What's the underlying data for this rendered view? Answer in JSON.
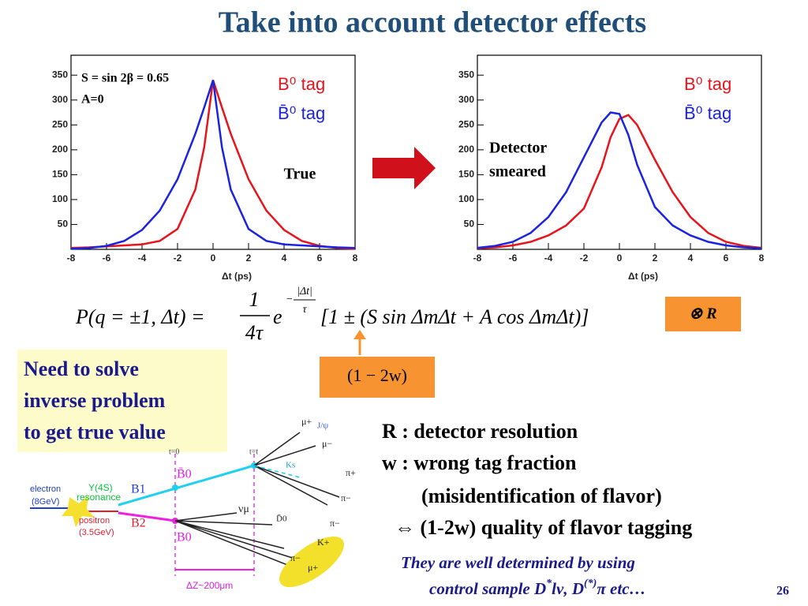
{
  "title": "Take into account detector effects",
  "chart_data": [
    {
      "type": "line",
      "xlabel": "Δt (ps)",
      "x": [
        -8,
        -7,
        -6,
        -5,
        -4,
        -3,
        -2,
        -1,
        -0.5,
        0,
        0.5,
        1,
        2,
        3,
        4,
        5,
        6,
        7,
        8
      ],
      "series": [
        {
          "name": "B⁰ tag",
          "color": "#e8141c",
          "values": [
            2.7,
            4,
            6,
            8,
            10,
            17,
            41,
            120,
            205,
            340,
            285,
            232,
            141,
            78,
            39,
            17,
            7,
            2.5,
            0.9
          ]
        },
        {
          "name": "B̄⁰ tag",
          "color": "#1a23e0",
          "values": [
            0.9,
            2.5,
            7,
            17,
            39,
            78,
            141,
            232,
            285,
            340,
            205,
            120,
            41,
            17,
            10,
            8,
            6,
            4,
            2.7
          ]
        }
      ],
      "xlim": [
        -8,
        8
      ],
      "ylim": [
        0,
        390
      ],
      "xticks": [
        -8,
        -6,
        -4,
        -2,
        0,
        2,
        4,
        6,
        8
      ],
      "yticks": [
        50,
        100,
        150,
        200,
        250,
        300,
        350
      ],
      "annotations": [
        "S = sin 2β = 0.65",
        "A=0",
        "True"
      ]
    },
    {
      "type": "line",
      "xlabel": "Δt (ps)",
      "x": [
        -8,
        -7,
        -6,
        -5,
        -4,
        -3,
        -2,
        -1,
        -0.5,
        0,
        0.5,
        1,
        2,
        3,
        4,
        5,
        6,
        7,
        8
      ],
      "series": [
        {
          "name": "B⁰ tag",
          "color": "#e8141c",
          "values": [
            2,
            4,
            8,
            15,
            28,
            48,
            82,
            165,
            225,
            262,
            270,
            250,
            180,
            115,
            65,
            33,
            15,
            7,
            3
          ]
        },
        {
          "name": "B̄⁰ tag",
          "color": "#1a23e0",
          "values": [
            3,
            7,
            15,
            33,
            65,
            115,
            185,
            255,
            275,
            272,
            230,
            170,
            85,
            48,
            28,
            15,
            8,
            4,
            2
          ]
        }
      ],
      "xlim": [
        -8,
        8
      ],
      "ylim": [
        0,
        390
      ],
      "xticks": [
        -8,
        -6,
        -4,
        -2,
        0,
        2,
        4,
        6,
        8
      ],
      "yticks": [
        50,
        100,
        150,
        200,
        250,
        300,
        350
      ],
      "annotations": [
        "Detector",
        "smeared"
      ]
    }
  ],
  "formula": {
    "lhs": "P(q = ±1, Δt) =",
    "num": "1",
    "den": "4τ",
    "base": "e",
    "exp_sign": "−",
    "exp_num": "|Δt|",
    "exp_den": "τ",
    "bracket": "[1 ± (S sin ΔmΔt + A cos ΔmΔt)]"
  },
  "convolution": "⊗ R",
  "dilution": "(1 − 2w)",
  "note": [
    "Need to solve",
    "inverse problem",
    "to get true value"
  ],
  "definitions": [
    "R : detector resolution",
    "w : wrong tag fraction",
    "(misidentification of flavor)",
    "⇔ (1-2w) quality of flavor tagging"
  ],
  "footnote": {
    "line1": "They are well determined by using",
    "line2a": "control sample D",
    "sup1": "*",
    "line2b": "lν, D",
    "sup2": "(*)",
    "line2c": "π etc…"
  },
  "page_number": "26",
  "diagram": {
    "labels": [
      "electron",
      "(8GeV)",
      "Υ(4S)",
      "resonance",
      "positron",
      "(3.5GeV)",
      "B1",
      "B2",
      "B̄0",
      "B0",
      "t=0",
      "t=t",
      "μ+",
      "μ−",
      "J/ψ",
      "Ks",
      "π+",
      "π−",
      "νμ",
      "D̄0",
      "π−",
      "K+",
      "π−",
      "μ+",
      "ΔZ~200μm"
    ]
  }
}
